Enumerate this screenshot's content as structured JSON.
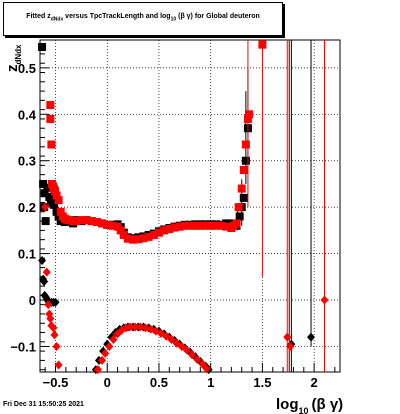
{
  "title": {
    "prefix": "Fitted",
    "z": "z",
    "z_sub": "dNdx",
    "middle": "versus TpcTrackLength and log",
    "log_sub": "10",
    "suffix": "(β γ) for Global deuteron"
  },
  "footer": {
    "timestamp": "Fri Dec 31 15:50:25 2021"
  },
  "chart_data": {
    "type": "scatter",
    "xlabel": "log10(β γ)",
    "xlabel_main": "log",
    "xlabel_sub": "10",
    "xlabel_tail": "(β γ)",
    "ylabel": "z_dNdx",
    "ylabel_main": "z",
    "ylabel_sub": "dNdx",
    "xlim": [
      -0.65,
      2.25
    ],
    "ylim": [
      -0.155,
      0.56
    ],
    "x_ticks": [
      -0.5,
      0,
      0.5,
      1,
      1.5,
      2
    ],
    "x_tick_labels": [
      "−0.5",
      "0",
      "0.5",
      "1",
      "1.5",
      "2"
    ],
    "y_ticks": [
      -0.1,
      0,
      0.1,
      0.2,
      0.3,
      0.4,
      0.5
    ],
    "y_tick_labels": [
      "−0.1",
      "0",
      "0.1",
      "0.2",
      "0.3",
      "0.4",
      "0.5"
    ],
    "grid": true,
    "colors": {
      "black": "#000000",
      "red": "#ff0000"
    },
    "series": [
      {
        "color": "#000000",
        "squares": [
          [
            -0.63,
            0.545
          ],
          [
            -0.62,
            0.25
          ],
          [
            -0.61,
            0.2
          ],
          [
            -0.605,
            0.23
          ],
          [
            -0.595,
            0.17
          ],
          [
            -0.58,
            0.242
          ],
          [
            -0.56,
            0.222
          ],
          [
            -0.545,
            0.215
          ],
          [
            -0.53,
            0.21
          ],
          [
            -0.515,
            0.205
          ],
          [
            -0.49,
            0.19
          ],
          [
            -0.47,
            0.18
          ],
          [
            -0.45,
            0.17
          ],
          [
            -0.41,
            0.168
          ],
          [
            -0.36,
            0.17
          ],
          [
            -0.33,
            0.165
          ],
          [
            -0.3,
            0.172
          ],
          [
            -0.25,
            0.17
          ],
          [
            -0.2,
            0.172
          ],
          [
            -0.15,
            0.17
          ],
          [
            -0.1,
            0.168
          ],
          [
            -0.05,
            0.165
          ],
          [
            0,
            0.162
          ],
          [
            0.05,
            0.162
          ],
          [
            0.1,
            0.163
          ],
          [
            0.13,
            0.157
          ],
          [
            0.16,
            0.145
          ],
          [
            0.2,
            0.135
          ],
          [
            0.25,
            0.133
          ],
          [
            0.3,
            0.135
          ],
          [
            0.35,
            0.137
          ],
          [
            0.4,
            0.14
          ],
          [
            0.45,
            0.143
          ],
          [
            0.5,
            0.148
          ],
          [
            0.55,
            0.152
          ],
          [
            0.6,
            0.155
          ],
          [
            0.65,
            0.158
          ],
          [
            0.7,
            0.16
          ],
          [
            0.75,
            0.162
          ],
          [
            0.8,
            0.162
          ],
          [
            0.85,
            0.163
          ],
          [
            0.9,
            0.163
          ],
          [
            0.95,
            0.163
          ],
          [
            1.0,
            0.163
          ],
          [
            1.05,
            0.163
          ],
          [
            1.1,
            0.162
          ],
          [
            1.15,
            0.165
          ],
          [
            1.2,
            0.165
          ],
          [
            1.22,
            0.16
          ],
          [
            1.25,
            0.16
          ],
          [
            1.28,
            0.18
          ],
          [
            1.3,
            0.2
          ],
          [
            1.32,
            0.22
          ],
          [
            1.34,
            0.3
          ],
          [
            1.36,
            0.37
          ]
        ],
        "diamonds": [
          [
            -0.63,
            0.085
          ],
          [
            -0.62,
            0.045
          ],
          [
            -0.61,
            0.04
          ],
          [
            -0.605,
            0.01
          ],
          [
            -0.59,
            0.005
          ],
          [
            -0.58,
            0.0
          ],
          [
            -0.56,
            -0.005
          ],
          [
            -0.54,
            -0.005
          ],
          [
            -0.52,
            -0.005
          ],
          [
            -0.5,
            -0.005
          ],
          [
            -0.11,
            -0.15
          ],
          [
            -0.08,
            -0.13
          ],
          [
            -0.04,
            -0.11
          ],
          [
            0.0,
            -0.095
          ],
          [
            0.04,
            -0.08
          ],
          [
            0.08,
            -0.07
          ],
          [
            0.12,
            -0.063
          ],
          [
            0.16,
            -0.06
          ],
          [
            0.2,
            -0.058
          ],
          [
            0.25,
            -0.058
          ],
          [
            0.3,
            -0.058
          ],
          [
            0.35,
            -0.058
          ],
          [
            0.4,
            -0.06
          ],
          [
            0.45,
            -0.063
          ],
          [
            0.5,
            -0.067
          ],
          [
            0.55,
            -0.073
          ],
          [
            0.6,
            -0.08
          ],
          [
            0.65,
            -0.087
          ],
          [
            0.7,
            -0.095
          ],
          [
            0.75,
            -0.103
          ],
          [
            0.8,
            -0.112
          ],
          [
            0.85,
            -0.122
          ],
          [
            0.9,
            -0.132
          ],
          [
            0.95,
            -0.142
          ],
          [
            0.98,
            -0.15
          ],
          [
            1.78,
            -0.095
          ],
          [
            1.97,
            -0.08
          ]
        ],
        "error_bars": [
          [
            1.26,
            0.15,
            0.2
          ],
          [
            1.3,
            0.16,
            0.26
          ],
          [
            1.34,
            0.25,
            0.45
          ],
          [
            1.36,
            0.3,
            0.5
          ],
          [
            1.76,
            -0.155,
            0.56
          ],
          [
            1.78,
            -0.155,
            0.56
          ],
          [
            1.97,
            -0.1,
            0.56
          ]
        ]
      },
      {
        "color": "#ff0000",
        "squares": [
          [
            -0.55,
            0.42
          ],
          [
            -0.55,
            0.39
          ],
          [
            -0.54,
            0.335
          ],
          [
            -0.535,
            0.25
          ],
          [
            -0.525,
            0.245
          ],
          [
            -0.515,
            0.24
          ],
          [
            -0.505,
            0.235
          ],
          [
            -0.49,
            0.225
          ],
          [
            -0.47,
            0.215
          ],
          [
            -0.45,
            0.19
          ],
          [
            -0.43,
            0.18
          ],
          [
            -0.41,
            0.175
          ],
          [
            -0.39,
            0.173
          ],
          [
            -0.37,
            0.172
          ],
          [
            -0.33,
            0.17
          ],
          [
            -0.3,
            0.17
          ],
          [
            -0.25,
            0.172
          ],
          [
            -0.2,
            0.172
          ],
          [
            -0.15,
            0.17
          ],
          [
            -0.1,
            0.168
          ],
          [
            -0.05,
            0.165
          ],
          [
            0,
            0.162
          ],
          [
            0.05,
            0.16
          ],
          [
            0.1,
            0.158
          ],
          [
            0.13,
            0.15
          ],
          [
            0.16,
            0.14
          ],
          [
            0.2,
            0.132
          ],
          [
            0.25,
            0.13
          ],
          [
            0.3,
            0.131
          ],
          [
            0.35,
            0.133
          ],
          [
            0.4,
            0.136
          ],
          [
            0.45,
            0.14
          ],
          [
            0.5,
            0.145
          ],
          [
            0.55,
            0.15
          ],
          [
            0.6,
            0.153
          ],
          [
            0.65,
            0.156
          ],
          [
            0.7,
            0.158
          ],
          [
            0.75,
            0.16
          ],
          [
            0.8,
            0.16
          ],
          [
            0.85,
            0.16
          ],
          [
            0.9,
            0.16
          ],
          [
            0.95,
            0.16
          ],
          [
            1.0,
            0.16
          ],
          [
            1.05,
            0.16
          ],
          [
            1.1,
            0.16
          ],
          [
            1.15,
            0.158
          ],
          [
            1.2,
            0.155
          ],
          [
            1.22,
            0.16
          ],
          [
            1.25,
            0.165
          ],
          [
            1.27,
            0.2
          ],
          [
            1.3,
            0.24
          ],
          [
            1.32,
            0.28
          ],
          [
            1.34,
            0.335
          ],
          [
            1.36,
            0.39
          ],
          [
            1.37,
            0.4
          ],
          [
            1.5,
            0.55
          ]
        ],
        "diamonds": [
          [
            -0.6,
            0.2
          ],
          [
            -0.585,
            0.06
          ],
          [
            -0.57,
            -0.01
          ],
          [
            -0.56,
            -0.03
          ],
          [
            -0.55,
            -0.04
          ],
          [
            -0.54,
            -0.055
          ],
          [
            -0.52,
            -0.06
          ],
          [
            -0.51,
            -0.075
          ],
          [
            -0.49,
            -0.1
          ],
          [
            -0.47,
            -0.14
          ],
          [
            -0.09,
            -0.15
          ],
          [
            -0.05,
            -0.13
          ],
          [
            -0.02,
            -0.115
          ],
          [
            0.02,
            -0.1
          ],
          [
            0.06,
            -0.085
          ],
          [
            0.1,
            -0.073
          ],
          [
            0.14,
            -0.065
          ],
          [
            0.18,
            -0.06
          ],
          [
            0.22,
            -0.058
          ],
          [
            0.27,
            -0.058
          ],
          [
            0.32,
            -0.058
          ],
          [
            0.37,
            -0.06
          ],
          [
            0.42,
            -0.063
          ],
          [
            0.47,
            -0.067
          ],
          [
            0.52,
            -0.072
          ],
          [
            0.57,
            -0.078
          ],
          [
            0.62,
            -0.085
          ],
          [
            0.67,
            -0.093
          ],
          [
            0.72,
            -0.1
          ],
          [
            0.77,
            -0.108
          ],
          [
            0.82,
            -0.118
          ],
          [
            0.87,
            -0.128
          ],
          [
            0.92,
            -0.138
          ],
          [
            0.96,
            -0.148
          ],
          [
            1.74,
            -0.08
          ],
          [
            1.77,
            -0.1
          ],
          [
            2.1,
            0.0
          ]
        ],
        "error_bars": [
          [
            1.36,
            0.2,
            0.56
          ],
          [
            1.5,
            0.05,
            0.56
          ],
          [
            1.74,
            -0.155,
            0.56
          ],
          [
            1.76,
            -0.155,
            0.56
          ],
          [
            2.1,
            -0.155,
            0.56
          ]
        ]
      }
    ]
  }
}
